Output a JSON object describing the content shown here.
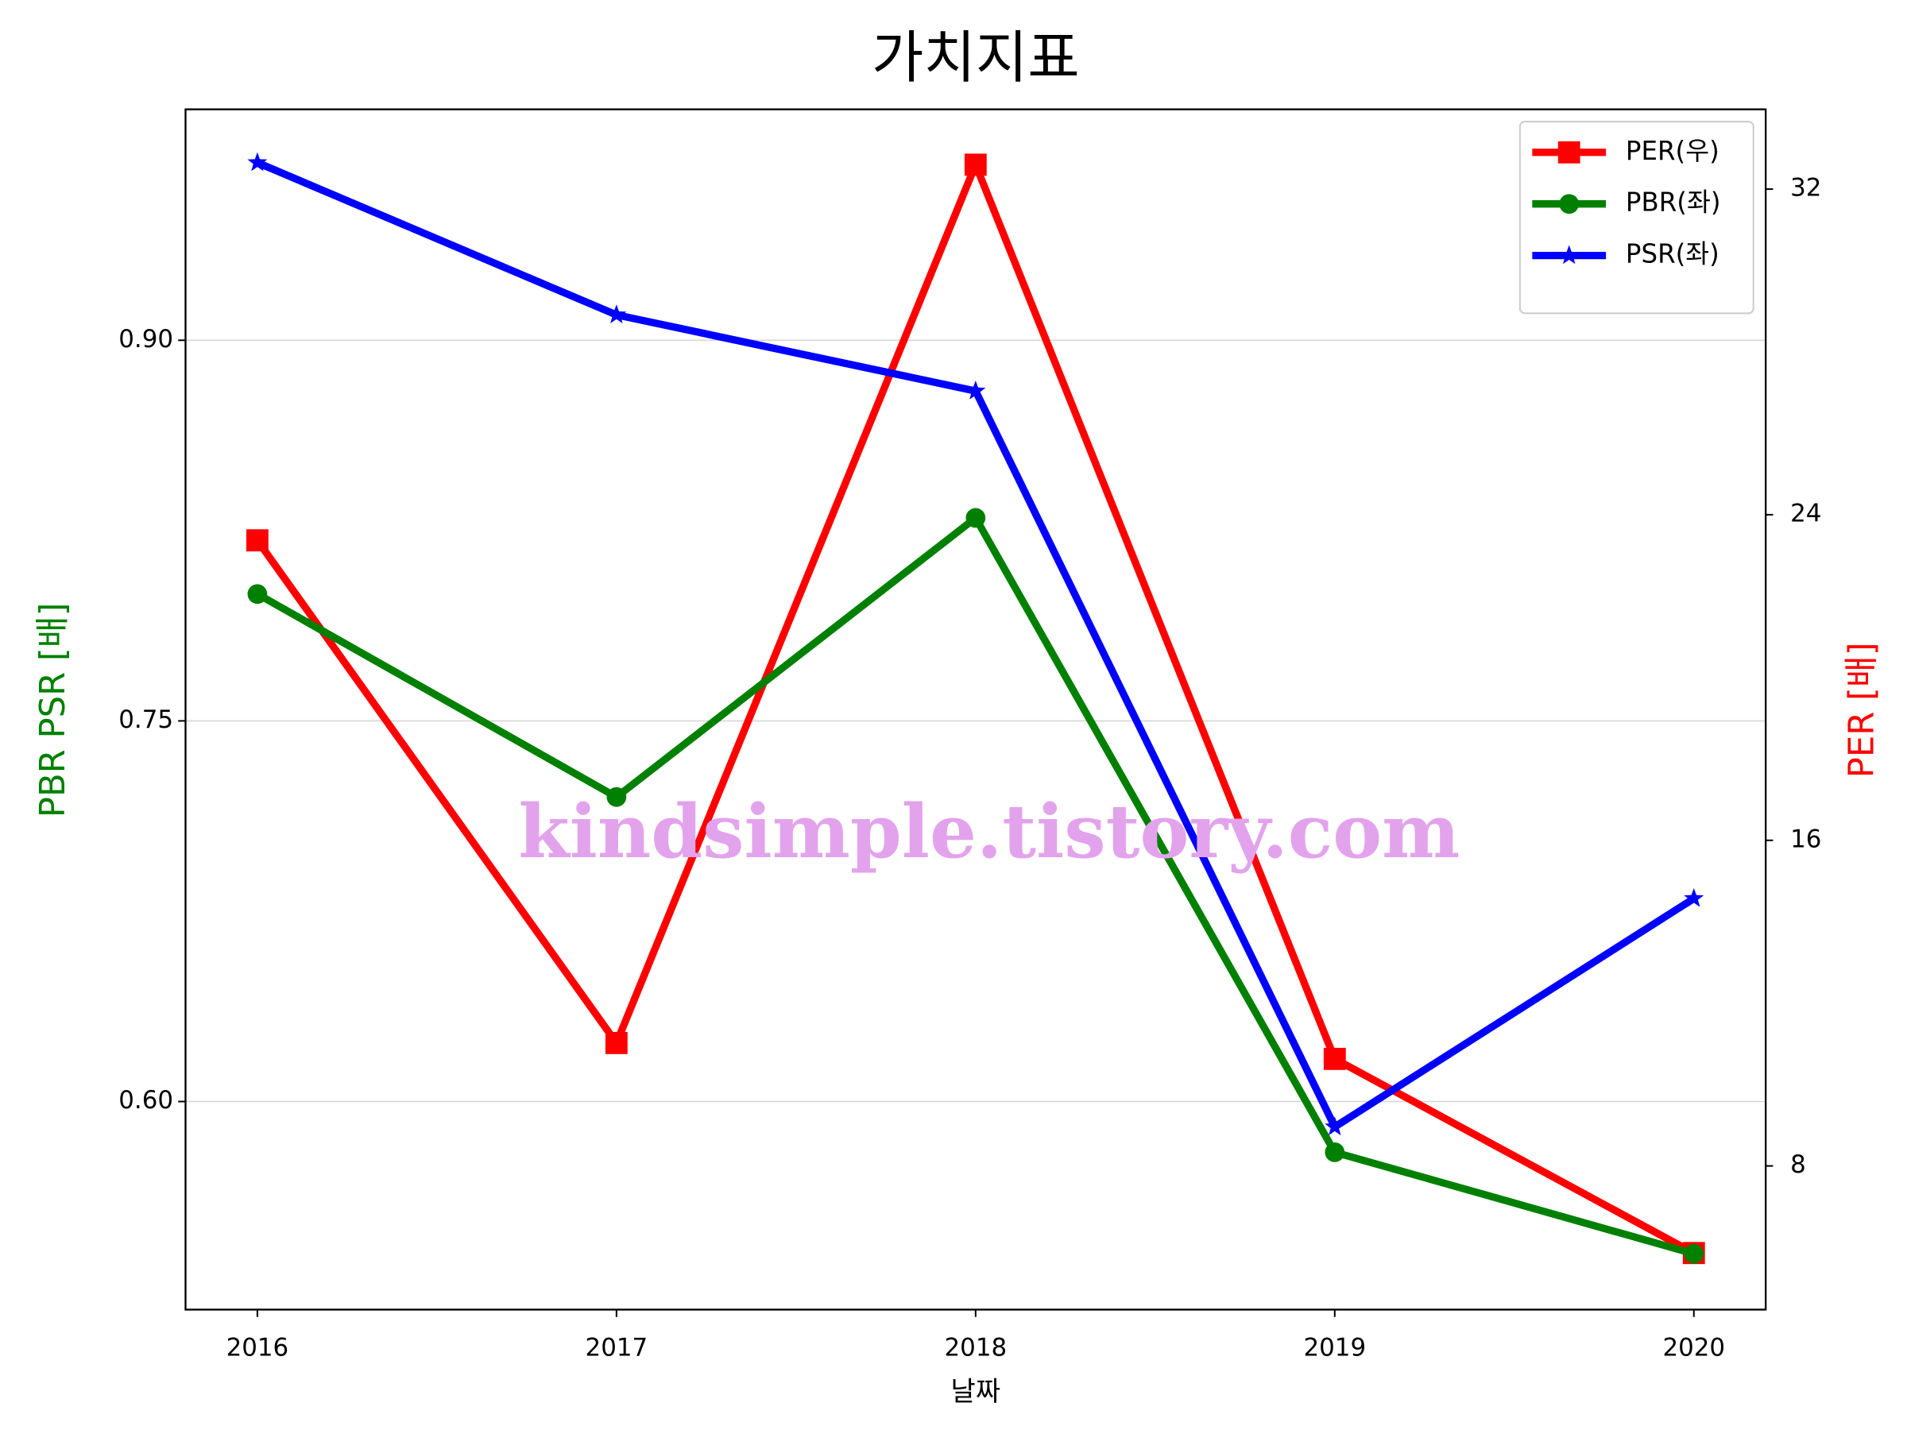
{
  "chart_data": {
    "type": "line",
    "title": "가치지표",
    "xlabel": "날짜",
    "ylabel": "PBR PSR [배]",
    "ylabel_color": "green",
    "y2label": "PER [배]",
    "y2label_color": "red",
    "watermark": "kindsimple.tistory.com",
    "watermark_color": "#e2a3ec",
    "x": [
      2016,
      2017,
      2018,
      2019,
      2020
    ],
    "xlim": [
      2015.8,
      2020.2
    ],
    "xticks": [
      2016,
      2017,
      2018,
      2019,
      2020
    ],
    "ylim": [
      0.518,
      0.991
    ],
    "yticks": [
      {
        "value": 0.6,
        "label": "0.60"
      },
      {
        "value": 0.75,
        "label": "0.75"
      },
      {
        "value": 0.9,
        "label": "0.90"
      }
    ],
    "y2lim": [
      4.47,
      33.96
    ],
    "y2ticks": [
      8,
      16,
      24,
      32
    ],
    "grid": "y",
    "legend": "upper right",
    "series": [
      {
        "name": "PER(우)",
        "color": "#ff0000",
        "marker": "square",
        "axis": "y2",
        "values": [
          23.37,
          11.02,
          32.6,
          10.63,
          5.86
        ]
      },
      {
        "name": "PBR(좌)",
        "color": "#008000",
        "marker": "circle",
        "axis": "y",
        "values": [
          0.8,
          0.72,
          0.83,
          0.58,
          0.54
        ]
      },
      {
        "name": "PSR(좌)",
        "color": "#0000ff",
        "marker": "star",
        "axis": "y",
        "values": [
          0.97,
          0.91,
          0.88,
          0.59,
          0.68
        ]
      }
    ]
  }
}
